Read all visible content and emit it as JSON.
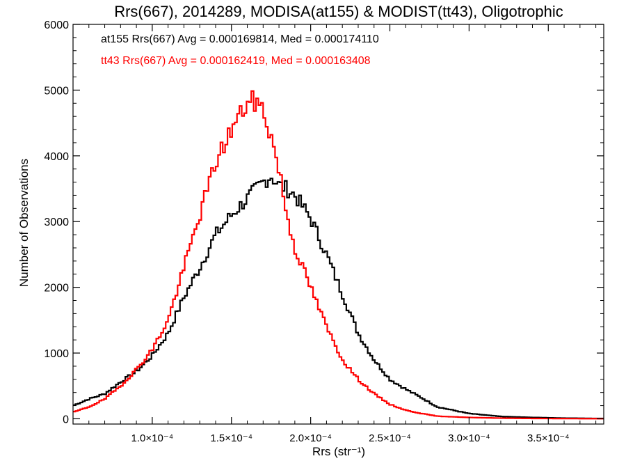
{
  "chart_data": {
    "type": "line",
    "title": "Rrs(667), 2014289, MODISA(at155) & MODIST(tt43), Oligotrophic",
    "xlabel": "Rrs (str⁻¹)",
    "ylabel": "Number of Observations",
    "xlim": [
      5e-05,
      0.000385
    ],
    "ylim": [
      -80,
      6000
    ],
    "x_ticks": [
      0.0001,
      0.00015,
      0.0002,
      0.00025,
      0.0003,
      0.00035
    ],
    "x_tick_labels": [
      "1.0×10⁻⁴",
      "1.5×10⁻⁴",
      "2.0×10⁻⁴",
      "2.5×10⁻⁴",
      "3.0×10⁻⁴",
      "3.5×10⁻⁴"
    ],
    "y_ticks": [
      0,
      1000,
      2000,
      3000,
      4000,
      5000,
      6000
    ],
    "y_tick_labels": [
      "0",
      "1000",
      "2000",
      "3000",
      "4000",
      "5000",
      "6000"
    ],
    "annotations": [
      {
        "text": "at155 Rrs(667) Avg = 0.000169814, Med = 0.000174110",
        "color": "#000000"
      },
      {
        "text": "tt43 Rrs(667) Avg = 0.000162419, Med = 0.000163408",
        "color": "#ff0000"
      }
    ],
    "series": [
      {
        "color": "#000000",
        "x": [
          5e-05,
          6e-05,
          7e-05,
          8e-05,
          9e-05,
          0.0001,
          0.00011,
          0.00012,
          0.00013,
          0.00014,
          0.00015,
          0.00016,
          0.00017,
          0.000175,
          0.00018,
          0.000185,
          0.00019,
          0.0002,
          0.00021,
          0.00022,
          0.00023,
          0.00024,
          0.00025,
          0.00026,
          0.00027,
          0.00028,
          0.0003,
          0.00032,
          0.00034,
          0.00036,
          0.00038
        ],
        "y": [
          200,
          300,
          380,
          560,
          720,
          960,
          1300,
          1850,
          2300,
          2800,
          3100,
          3350,
          3600,
          3700,
          3550,
          3500,
          3400,
          3050,
          2500,
          1900,
          1300,
          900,
          600,
          450,
          320,
          180,
          80,
          35,
          20,
          10,
          5
        ]
      },
      {
        "color": "#ff0000",
        "x": [
          5e-05,
          6e-05,
          7e-05,
          8e-05,
          9e-05,
          0.0001,
          0.00011,
          0.00012,
          0.00013,
          0.00014,
          0.00015,
          0.00016,
          0.000165,
          0.00017,
          0.000175,
          0.00018,
          0.000185,
          0.00019,
          0.0002,
          0.00021,
          0.00022,
          0.00023,
          0.00024,
          0.00025,
          0.00026,
          0.00027,
          0.00028,
          0.0003,
          0.00032,
          0.00034,
          0.00036,
          0.00038
        ],
        "y": [
          100,
          180,
          300,
          500,
          750,
          1050,
          1500,
          2300,
          3100,
          3900,
          4400,
          4800,
          4830,
          4700,
          4300,
          3800,
          3100,
          2600,
          2000,
          1400,
          900,
          600,
          380,
          220,
          130,
          80,
          40,
          20,
          10,
          5,
          3,
          2
        ]
      }
    ]
  }
}
